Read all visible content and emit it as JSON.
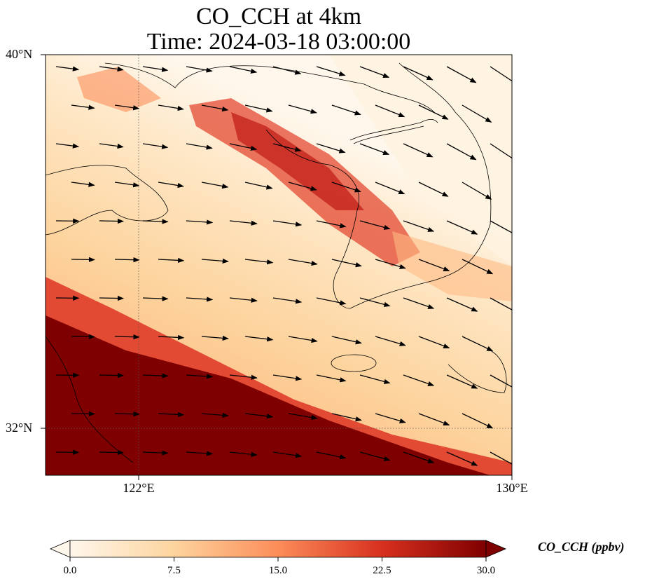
{
  "title": {
    "line1": "CO_CCH at 4km",
    "line2": "Time: 2024-03-18 03:00:00"
  },
  "map": {
    "variable": "CO_CCH",
    "level": "4km",
    "lat_range": [
      31,
      40
    ],
    "lon_range": [
      120,
      130
    ],
    "lat_ticks": [
      "40°N",
      "32°N"
    ],
    "lon_ticks": [
      "122°E",
      "130°E"
    ],
    "gridlines": "dotted",
    "colormap": "OrRd"
  },
  "colorbar": {
    "label": "CO_CCH (ppbv)",
    "ticks": [
      "0.0",
      "7.5",
      "15.0",
      "22.5",
      "30.0"
    ],
    "min": 0,
    "max": 30,
    "extend": "both",
    "colors": [
      "#fff7ec",
      "#fdd49e",
      "#fc8d59",
      "#d7301f",
      "#7f0000"
    ]
  }
}
